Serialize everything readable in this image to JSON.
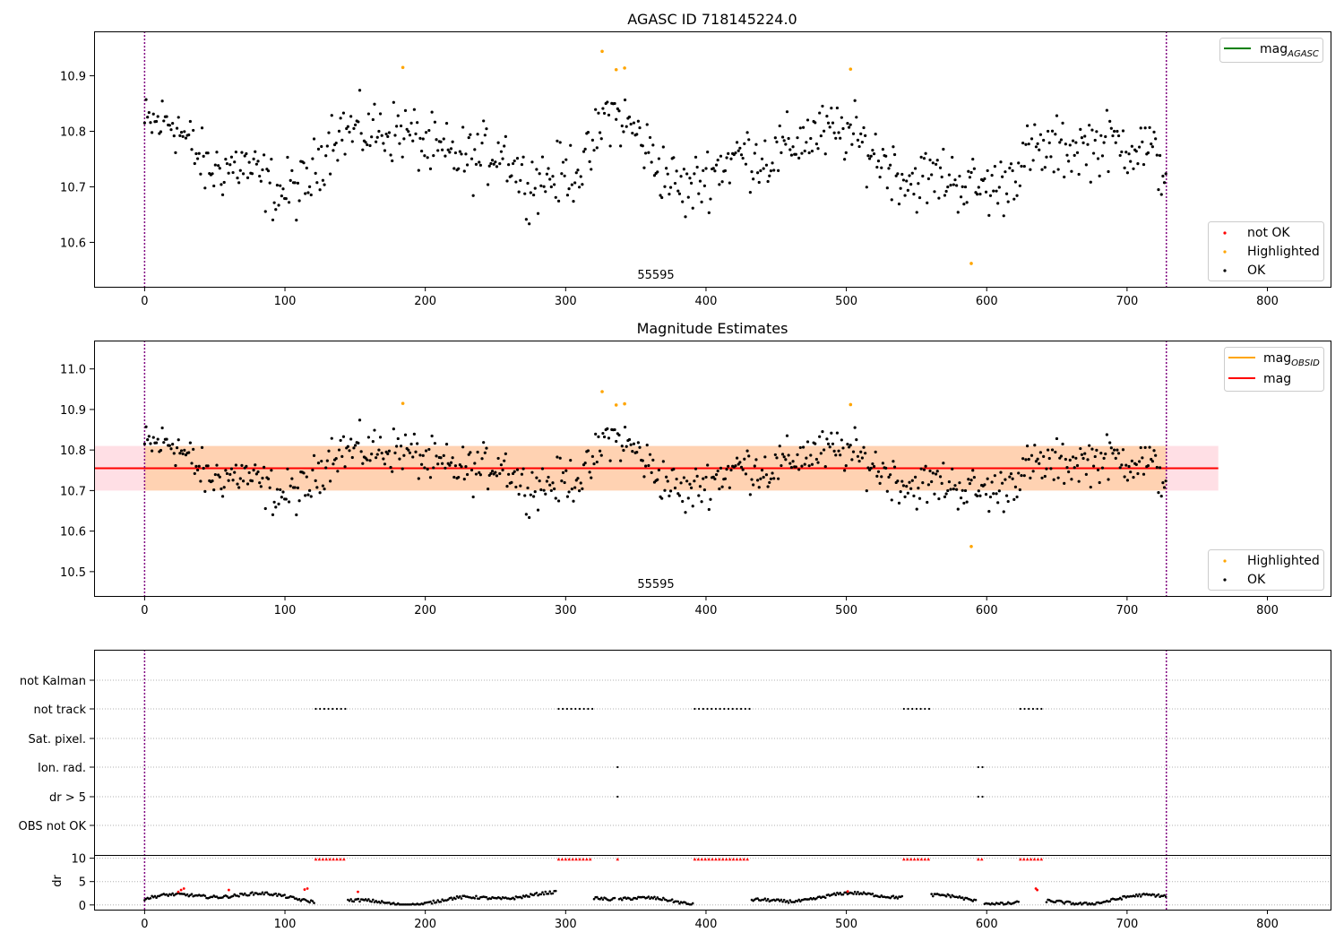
{
  "chart_data": [
    {
      "type": "scatter",
      "title": "AGASC ID 718145224.0",
      "annotation": "55595",
      "xlim": [
        -36,
        845
      ],
      "ylim": [
        10.52,
        10.98
      ],
      "xticks": [
        0,
        100,
        200,
        300,
        400,
        500,
        600,
        700,
        800
      ],
      "yticks": [
        10.6,
        10.7,
        10.8,
        10.9
      ],
      "vlines": [
        0,
        728
      ],
      "line_legend": [
        {
          "name": "mag",
          "subscript": "AGASC",
          "color": "#008000"
        }
      ],
      "point_legend": [
        {
          "name": "not OK",
          "color": "#ff0000"
        },
        {
          "name": "Highlighted",
          "color": "#ffa500"
        },
        {
          "name": "OK",
          "color": "#000000"
        }
      ],
      "highlighted_points": [
        {
          "x": 184,
          "y": 10.915
        },
        {
          "x": 326,
          "y": 10.944
        },
        {
          "x": 336,
          "y": 10.911
        },
        {
          "x": 342,
          "y": 10.914
        },
        {
          "x": 503,
          "y": 10.912
        },
        {
          "x": 589,
          "y": 10.562
        }
      ],
      "ok_trend": [
        [
          0,
          10.81
        ],
        [
          20,
          10.82
        ],
        [
          45,
          10.73
        ],
        [
          70,
          10.74
        ],
        [
          95,
          10.69
        ],
        [
          115,
          10.7
        ],
        [
          135,
          10.8
        ],
        [
          160,
          10.8
        ],
        [
          185,
          10.8
        ],
        [
          210,
          10.76
        ],
        [
          235,
          10.75
        ],
        [
          255,
          10.77
        ],
        [
          270,
          10.71
        ],
        [
          295,
          10.72
        ],
        [
          315,
          10.74
        ],
        [
          330,
          10.84
        ],
        [
          350,
          10.8
        ],
        [
          365,
          10.74
        ],
        [
          385,
          10.69
        ],
        [
          405,
          10.73
        ],
        [
          425,
          10.76
        ],
        [
          445,
          10.75
        ],
        [
          470,
          10.79
        ],
        [
          500,
          10.8
        ],
        [
          520,
          10.76
        ],
        [
          545,
          10.71
        ],
        [
          570,
          10.72
        ],
        [
          590,
          10.7
        ],
        [
          610,
          10.7
        ],
        [
          630,
          10.76
        ],
        [
          660,
          10.77
        ],
        [
          690,
          10.78
        ],
        [
          715,
          10.77
        ],
        [
          728,
          10.72
        ]
      ]
    },
    {
      "type": "scatter",
      "title": "Magnitude Estimates",
      "annotation": "55595",
      "xlim": [
        -36,
        845
      ],
      "ylim": [
        10.44,
        11.07
      ],
      "xticks": [
        0,
        100,
        200,
        300,
        400,
        500,
        600,
        700,
        800
      ],
      "yticks": [
        10.5,
        10.6,
        10.7,
        10.8,
        10.9,
        11.0
      ],
      "vlines": [
        0,
        728
      ],
      "mag": 10.755,
      "band_outer": [
        10.7,
        10.81
      ],
      "band_x": [
        -36,
        765
      ],
      "line_legend": [
        {
          "name": "mag",
          "subscript": "OBSID",
          "color": "#ffa500"
        },
        {
          "name": "mag",
          "subscript": "",
          "color": "#ff0000"
        }
      ],
      "point_legend": [
        {
          "name": "Highlighted",
          "color": "#ffa500"
        },
        {
          "name": "OK",
          "color": "#000000"
        }
      ]
    },
    {
      "type": "scatter",
      "xlim": [
        -36,
        845
      ],
      "xticks": [
        0,
        100,
        200,
        300,
        400,
        500,
        600,
        700,
        800
      ],
      "vlines": [
        0,
        728
      ],
      "flags": [
        "not Kalman",
        "not track",
        "Sat. pixel.",
        "Ion. rad.",
        "dr > 5",
        "OBS not OK"
      ],
      "flag_ranges": {
        "not track": [
          [
            122,
            143
          ],
          [
            295,
            319
          ],
          [
            392,
            431
          ],
          [
            541,
            559
          ],
          [
            624,
            641
          ]
        ],
        "Ion. rad.": [
          [
            337,
            337
          ],
          [
            594,
            597
          ]
        ],
        "dr > 5": [
          [
            337,
            337
          ],
          [
            594,
            597
          ]
        ]
      },
      "dr_label": "dr",
      "dr_yticks": [
        0,
        5,
        10
      ],
      "dr_ylim": [
        -1,
        10.5
      ],
      "dr_high_ranges": [
        [
          122,
          143
        ],
        [
          295,
          319
        ],
        [
          337,
          337
        ],
        [
          392,
          431
        ],
        [
          541,
          559
        ],
        [
          594,
          597
        ],
        [
          624,
          641
        ]
      ],
      "dr_red_points": [
        {
          "x": 24,
          "y": 2.8
        },
        {
          "x": 26,
          "y": 3.2
        },
        {
          "x": 28,
          "y": 3.5
        },
        {
          "x": 60,
          "y": 3.2
        },
        {
          "x": 114,
          "y": 3.3
        },
        {
          "x": 116,
          "y": 3.5
        },
        {
          "x": 152,
          "y": 2.8
        },
        {
          "x": 501,
          "y": 2.9
        },
        {
          "x": 635,
          "y": 3.5
        },
        {
          "x": 636,
          "y": 3.2
        }
      ]
    }
  ]
}
